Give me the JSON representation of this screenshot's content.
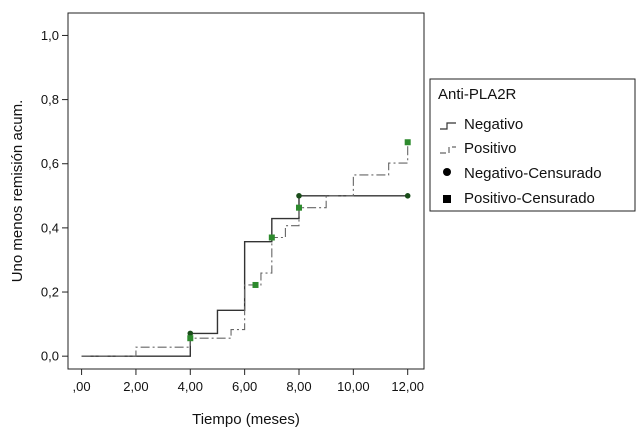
{
  "chart_data": {
    "type": "line",
    "style": "step",
    "xlabel": "Tiempo (meses)",
    "ylabel": "Uno menos remisión acum.",
    "xlim": [
      -0.5,
      12.6
    ],
    "ylim": [
      -0.04,
      1.07
    ],
    "x_ticks": [
      0,
      2,
      4,
      6,
      8,
      10,
      12
    ],
    "x_tick_labels": [
      ",00",
      "2,00",
      "4,00",
      "6,00",
      "8,00",
      "10,00",
      "12,00"
    ],
    "y_ticks": [
      0,
      0.2,
      0.4,
      0.6,
      0.8,
      1.0
    ],
    "y_tick_labels": [
      "0,0",
      "0,2",
      "0,4",
      "0,6",
      "0,8",
      "1,0"
    ],
    "grid": false,
    "legend_position": "right",
    "legend": {
      "title": "Anti-PLA2R",
      "entries": [
        "Negativo",
        "Positivo",
        "Negativo-Censurado",
        "Positivo-Censurado"
      ]
    },
    "series": [
      {
        "name": "Negativo",
        "line_style": "solid",
        "color": "#333333",
        "steps": [
          [
            0,
            0
          ],
          [
            4.0,
            0.071
          ],
          [
            5.0,
            0.143
          ],
          [
            6.0,
            0.357
          ],
          [
            7.0,
            0.429
          ],
          [
            8.0,
            0.5
          ],
          [
            12.0,
            0.5
          ]
        ],
        "censored": [
          [
            4.0,
            0.071
          ],
          [
            8.0,
            0.5
          ],
          [
            12.0,
            0.5
          ]
        ]
      },
      {
        "name": "Positivo",
        "line_style": "dash-dot",
        "color": "#666666",
        "steps": [
          [
            0,
            0
          ],
          [
            2.0,
            0.028
          ],
          [
            4.0,
            0.056
          ],
          [
            5.5,
            0.083
          ],
          [
            6.0,
            0.111
          ],
          [
            6.0,
            0.222
          ],
          [
            6.6,
            0.259
          ],
          [
            7.0,
            0.37
          ],
          [
            7.5,
            0.407
          ],
          [
            8.0,
            0.463
          ],
          [
            9.0,
            0.5
          ],
          [
            10.0,
            0.537
          ],
          [
            10.0,
            0.565
          ],
          [
            11.3,
            0.602
          ],
          [
            12.0,
            0.667
          ]
        ],
        "censored": [
          [
            4.0,
            0.056
          ],
          [
            6.4,
            0.222
          ],
          [
            7.0,
            0.37
          ],
          [
            8.0,
            0.463
          ],
          [
            12.0,
            0.667
          ]
        ]
      }
    ],
    "marker_colors": {
      "circle": "#1a4d1a",
      "square": "#2d8a2d",
      "legend_marker": "#000000"
    }
  }
}
